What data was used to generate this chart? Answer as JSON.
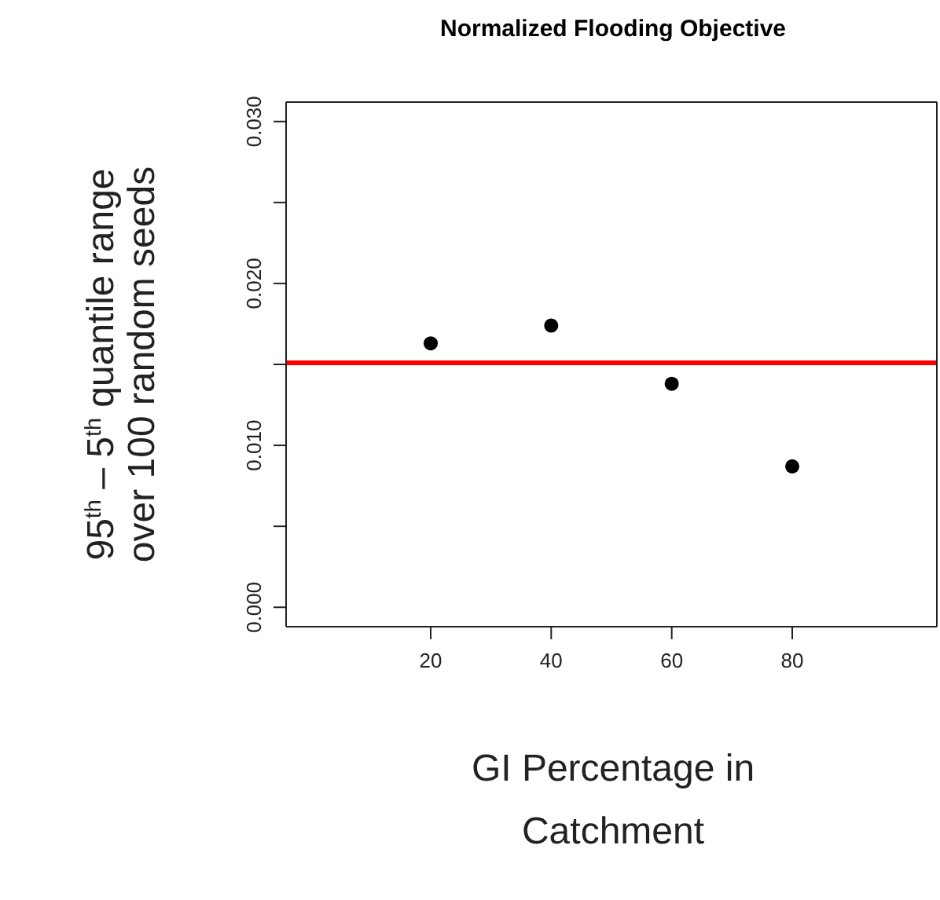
{
  "chart_data": {
    "type": "scatter",
    "title": "Normalized Flooding Objective",
    "xlabel": "GI Percentage in\nCatchment",
    "ylabel": "95$^{th}$ – 5$^{th}$ quantile range\nover 100 random seeds",
    "x": [
      20,
      40,
      60,
      80
    ],
    "series": [
      {
        "color": "#000000",
        "values": [
          0.0163,
          0.0174,
          0.0138,
          0.0087
        ]
      }
    ],
    "marker": "circle",
    "xlim": [
      -4,
      104
    ],
    "xticks": [
      20,
      40,
      60,
      80
    ],
    "ylim": [
      -0.0012,
      0.0312
    ],
    "yticks": [
      {
        "value": 0,
        "label": "0.000"
      },
      {
        "value": 0.005,
        "label": null
      },
      {
        "value": 0.01,
        "label": "0.010"
      },
      {
        "value": 0.015,
        "label": null
      },
      {
        "value": 0.02,
        "label": "0.020"
      },
      {
        "value": 0.025,
        "label": null
      },
      {
        "value": 0.03,
        "label": "0.030"
      }
    ],
    "ref_lines": [
      {
        "axis": "y",
        "value": 0.0151,
        "color": "#ff0000"
      }
    ]
  }
}
